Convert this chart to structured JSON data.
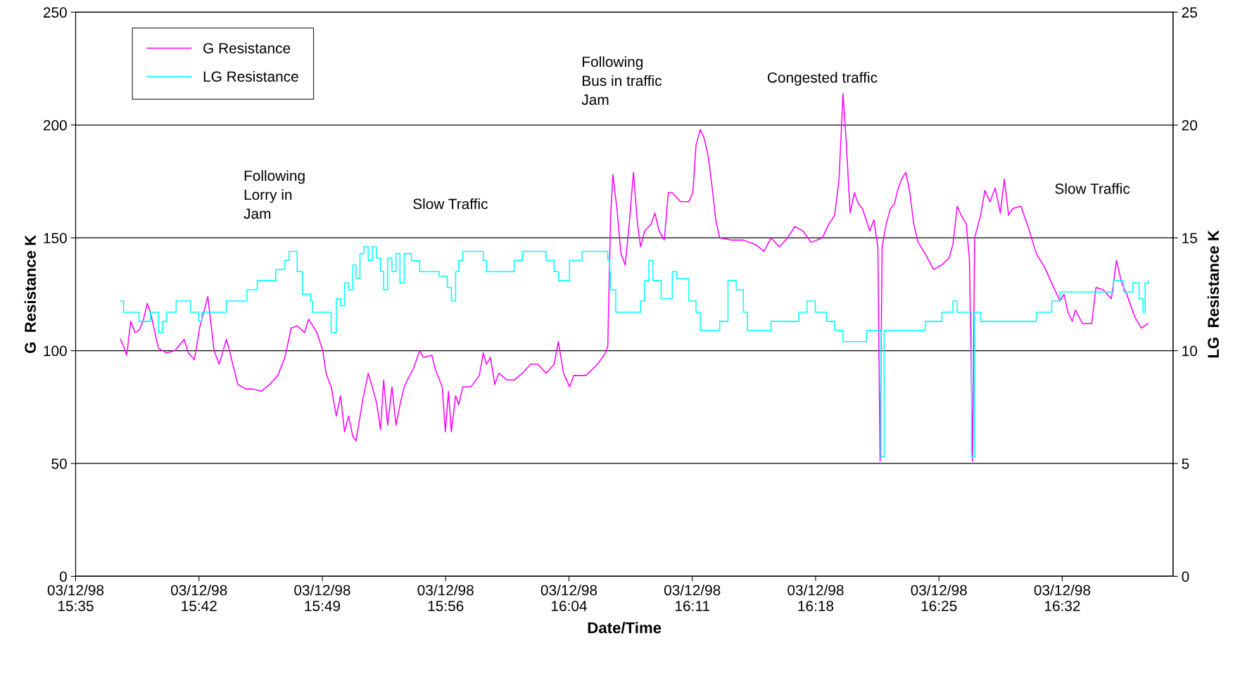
{
  "chart_data": {
    "type": "line",
    "xlabel": "Date/Time",
    "ylabel": "G  Resistance K",
    "y2label": "LG  Resistance K",
    "xlim": [
      "1998-12-03T15:35:00",
      "1998-12-03T16:39:04"
    ],
    "xticks": [
      {
        "value": "1998-12-03T15:35:00",
        "label": "03/12/98\n15:35"
      },
      {
        "value": "1998-12-03T15:42:12",
        "label": "03/12/98\n15:42"
      },
      {
        "value": "1998-12-03T15:49:24",
        "label": "03/12/98\n15:49"
      },
      {
        "value": "1998-12-03T15:56:36",
        "label": "03/12/98\n15:56"
      },
      {
        "value": "1998-12-03T16:03:48",
        "label": "03/12/98\n16:04"
      },
      {
        "value": "1998-12-03T16:11:00",
        "label": "03/12/98\n16:11"
      },
      {
        "value": "1998-12-03T16:18:12",
        "label": "03/12/98\n16:18"
      },
      {
        "value": "1998-12-03T16:25:24",
        "label": "03/12/98\n16:25"
      },
      {
        "value": "1998-12-03T16:32:36",
        "label": "03/12/98\n16:32"
      }
    ],
    "ylim": [
      0,
      250
    ],
    "yticks": [
      0,
      50,
      100,
      150,
      200,
      250
    ],
    "y2lim": [
      0,
      25
    ],
    "y2ticks": [
      0,
      5,
      10,
      15,
      20,
      25
    ],
    "grid": "y",
    "legend": "top left",
    "marker": "none",
    "line_style": "solid",
    "series": [
      {
        "name": "G Resistance",
        "color": "#ff00ff",
        "x": [
          "1998-12-03T15:37:37",
          "1998-12-03T15:37:48",
          "1998-12-03T15:37:59",
          "1998-12-03T15:38:13",
          "1998-12-03T15:38:28",
          "1998-12-03T15:38:42",
          "1998-12-03T15:38:56",
          "1998-12-03T15:39:11",
          "1998-12-03T15:39:22",
          "1998-12-03T15:39:36",
          "1998-12-03T15:39:50",
          "1998-12-03T15:40:19",
          "1998-12-03T15:40:48",
          "1998-12-03T15:41:20",
          "1998-12-03T15:41:35",
          "1998-12-03T15:41:56",
          "1998-12-03T15:42:14",
          "1998-12-03T15:42:43",
          "1998-12-03T15:43:05",
          "1998-12-03T15:43:23",
          "1998-12-03T15:43:48",
          "1998-12-03T15:43:59",
          "1998-12-03T15:44:28",
          "1998-12-03T15:44:56",
          "1998-12-03T15:45:22",
          "1998-12-03T15:45:50",
          "1998-12-03T15:46:19",
          "1998-12-03T15:46:48",
          "1998-12-03T15:47:13",
          "1998-12-03T15:47:35",
          "1998-12-03T15:47:56",
          "1998-12-03T15:48:22",
          "1998-12-03T15:48:36",
          "1998-12-03T15:49:05",
          "1998-12-03T15:49:26",
          "1998-12-03T15:49:37",
          "1998-12-03T15:49:55",
          "1998-12-03T15:50:13",
          "1998-12-03T15:50:28",
          "1998-12-03T15:50:42",
          "1998-12-03T15:50:56",
          "1998-12-03T15:51:11",
          "1998-12-03T15:51:22",
          "1998-12-03T15:51:47",
          "1998-12-03T15:52:05",
          "1998-12-03T15:52:19",
          "1998-12-03T15:52:34",
          "1998-12-03T15:52:48",
          "1998-12-03T15:52:59",
          "1998-12-03T15:53:13",
          "1998-12-03T15:53:28",
          "1998-12-03T15:53:42",
          "1998-12-03T15:53:56",
          "1998-12-03T15:54:11",
          "1998-12-03T15:54:22",
          "1998-12-03T15:54:43",
          "1998-12-03T15:55:05",
          "1998-12-03T15:55:19",
          "1998-12-03T15:55:48",
          "1998-12-03T15:55:59",
          "1998-12-03T15:56:24",
          "1998-12-03T15:56:35",
          "1998-12-03T15:56:46",
          "1998-12-03T15:56:56",
          "1998-12-03T15:57:11",
          "1998-12-03T15:57:22",
          "1998-12-03T15:57:36",
          "1998-12-03T15:58:05",
          "1998-12-03T15:58:34",
          "1998-12-03T15:58:48",
          "1998-12-03T15:58:59",
          "1998-12-03T15:59:13",
          "1998-12-03T15:59:28",
          "1998-12-03T15:59:42",
          "1998-12-03T16:00:11",
          "1998-12-03T16:00:36",
          "1998-12-03T16:01:05",
          "1998-12-03T16:01:34",
          "1998-12-03T16:01:59",
          "1998-12-03T16:02:28",
          "1998-12-03T16:02:56",
          "1998-12-03T16:03:11",
          "1998-12-03T16:03:29",
          "1998-12-03T16:03:50",
          "1998-12-03T16:04:05",
          "1998-12-03T16:04:48",
          "1998-12-03T16:05:28",
          "1998-12-03T16:05:56",
          "1998-12-03T16:06:04",
          "1998-12-03T16:06:14",
          "1998-12-03T16:06:22",
          "1998-12-03T16:06:36",
          "1998-12-03T16:06:50",
          "1998-12-03T16:07:05",
          "1998-12-03T16:07:19",
          "1998-12-03T16:07:34",
          "1998-12-03T16:07:48",
          "1998-12-03T16:07:59",
          "1998-12-03T16:08:13",
          "1998-12-03T16:08:35",
          "1998-12-03T16:08:49",
          "1998-12-03T16:09:04",
          "1998-12-03T16:09:22",
          "1998-12-03T16:09:36",
          "1998-12-03T16:09:50",
          "1998-12-03T16:10:19",
          "1998-12-03T16:10:48",
          "1998-12-03T16:11:02",
          "1998-12-03T16:11:13",
          "1998-12-03T16:11:28",
          "1998-12-03T16:11:42",
          "1998-12-03T16:11:56",
          "1998-12-03T16:12:11",
          "1998-12-03T16:12:22",
          "1998-12-03T16:12:36",
          "1998-12-03T16:13:19",
          "1998-12-03T16:13:59",
          "1998-12-03T16:14:42",
          "1998-12-03T16:15:11",
          "1998-12-03T16:15:36",
          "1998-12-03T16:16:05",
          "1998-12-03T16:16:34",
          "1998-12-03T16:16:59",
          "1998-12-03T16:17:28",
          "1998-12-03T16:17:56",
          "1998-12-03T16:18:36",
          "1998-12-03T16:18:58",
          "1998-12-03T16:19:19",
          "1998-12-03T16:19:34",
          "1998-12-03T16:19:48",
          "1998-12-03T16:19:59",
          "1998-12-03T16:20:13",
          "1998-12-03T16:20:28",
          "1998-12-03T16:20:42",
          "1998-12-03T16:20:56",
          "1998-12-03T16:21:22",
          "1998-12-03T16:21:36",
          "1998-12-03T16:21:50",
          "1998-12-03T16:21:58",
          "1998-12-03T16:22:05",
          "1998-12-03T16:22:19",
          "1998-12-03T16:22:34",
          "1998-12-03T16:22:48",
          "1998-12-03T16:22:59",
          "1998-12-03T16:23:13",
          "1998-12-03T16:23:28",
          "1998-12-03T16:23:42",
          "1998-12-03T16:23:56",
          "1998-12-03T16:24:11",
          "1998-12-03T16:24:36",
          "1998-12-03T16:25:05",
          "1998-12-03T16:25:34",
          "1998-12-03T16:25:59",
          "1998-12-03T16:26:13",
          "1998-12-03T16:26:28",
          "1998-12-03T16:26:42",
          "1998-12-03T16:27:00",
          "1998-12-03T16:27:11",
          "1998-12-03T16:27:22",
          "1998-12-03T16:27:29",
          "1998-12-03T16:27:50",
          "1998-12-03T16:28:05",
          "1998-12-03T16:28:23",
          "1998-12-03T16:28:41",
          "1998-12-03T16:28:59",
          "1998-12-03T16:29:13",
          "1998-12-03T16:29:28",
          "1998-12-03T16:29:42",
          "1998-12-03T16:30:11",
          "1998-12-03T16:30:36",
          "1998-12-03T16:31:05",
          "1998-12-03T16:31:34",
          "1998-12-03T16:31:59",
          "1998-12-03T16:32:28",
          "1998-12-03T16:32:42",
          "1998-12-03T16:32:56",
          "1998-12-03T16:33:11",
          "1998-12-03T16:33:22",
          "1998-12-03T16:33:47",
          "1998-12-03T16:34:19",
          "1998-12-03T16:34:34",
          "1998-12-03T16:34:59",
          "1998-12-03T16:35:28",
          "1998-12-03T16:35:46",
          "1998-12-03T16:36:04",
          "1998-12-03T16:36:22",
          "1998-12-03T16:36:50",
          "1998-12-03T16:37:12",
          "1998-12-03T16:37:37"
        ],
        "values": [
          105,
          102,
          98,
          113,
          108,
          109,
          113,
          121,
          117,
          109,
          101,
          99,
          100,
          105,
          99,
          96,
          110,
          124,
          100,
          94,
          105,
          100,
          85,
          83,
          83,
          82,
          85,
          89,
          97,
          110,
          111,
          108,
          114,
          108,
          100,
          90,
          84,
          71,
          80,
          64,
          71,
          62,
          60,
          79,
          90,
          84,
          77,
          65,
          87,
          67,
          84,
          67,
          76,
          84,
          87,
          92,
          100,
          97,
          98,
          92,
          84,
          64,
          82,
          64,
          80,
          76,
          84,
          84,
          89,
          99,
          94,
          97,
          85,
          90,
          87,
          87,
          90,
          94,
          94,
          90,
          94,
          104,
          90,
          84,
          89,
          89,
          94,
          99,
          102,
          160,
          178,
          163,
          143,
          138,
          156,
          179,
          156,
          146,
          153,
          156,
          161,
          153,
          149,
          170,
          170,
          166,
          166,
          170,
          191,
          198,
          194,
          186,
          171,
          158,
          150,
          149,
          149,
          147,
          144,
          150,
          146,
          150,
          155,
          153,
          148,
          150,
          156,
          160,
          176,
          214,
          193,
          161,
          170,
          165,
          163,
          153,
          158,
          146,
          51,
          146,
          156,
          163,
          165,
          171,
          176,
          179,
          170,
          156,
          148,
          143,
          136,
          138,
          141,
          147,
          164,
          160,
          156,
          140,
          51,
          150,
          160,
          171,
          166,
          172,
          161,
          176,
          160,
          163,
          164,
          155,
          143,
          137,
          130,
          122,
          125,
          117,
          113,
          118,
          112,
          112,
          128,
          127,
          123,
          140,
          130,
          125,
          115,
          110,
          112
        ]
      },
      {
        "name": "LG Resistance",
        "color": "#00ffff",
        "axis": "y2",
        "type": "step",
        "x": [
          "1998-12-03T15:37:37",
          "1998-12-03T15:37:48",
          "1998-12-03T15:38:28",
          "1998-12-03T15:38:42",
          "1998-12-03T15:39:11",
          "1998-12-03T15:39:22",
          "1998-12-03T15:39:50",
          "1998-12-03T15:40:05",
          "1998-12-03T15:40:19",
          "1998-12-03T15:40:52",
          "1998-12-03T15:41:35",
          "1998-12-03T15:41:42",
          "1998-12-03T15:42:11",
          "1998-12-03T15:42:22",
          "1998-12-03T15:43:05",
          "1998-12-03T15:43:48",
          "1998-12-03T15:44:28",
          "1998-12-03T15:45:00",
          "1998-12-03T15:45:36",
          "1998-12-03T15:46:41",
          "1998-12-03T15:47:13",
          "1998-12-03T15:47:28",
          "1998-12-03T15:47:42",
          "1998-12-03T15:47:56",
          "1998-12-03T15:48:14",
          "1998-12-03T15:48:43",
          "1998-12-03T15:48:50",
          "1998-12-03T15:49:19",
          "1998-12-03T15:49:44",
          "1998-12-03T15:49:55",
          "1998-12-03T15:50:13",
          "1998-12-03T15:50:28",
          "1998-12-03T15:50:42",
          "1998-12-03T15:50:56",
          "1998-12-03T15:51:11",
          "1998-12-03T15:51:22",
          "1998-12-03T15:51:36",
          "1998-12-03T15:51:50",
          "1998-12-03T15:52:05",
          "1998-12-03T15:52:19",
          "1998-12-03T15:52:34",
          "1998-12-03T15:52:48",
          "1998-12-03T15:52:59",
          "1998-12-03T15:53:13",
          "1998-12-03T15:53:28",
          "1998-12-03T15:53:42",
          "1998-12-03T15:53:56",
          "1998-12-03T15:54:11",
          "1998-12-03T15:54:36",
          "1998-12-03T15:55:05",
          "1998-12-03T15:55:48",
          "1998-12-03T15:56:13",
          "1998-12-03T15:56:42",
          "1998-12-03T15:56:56",
          "1998-12-03T15:57:11",
          "1998-12-03T15:57:22",
          "1998-12-03T15:57:36",
          "1998-12-03T15:58:19",
          "1998-12-03T15:58:48",
          "1998-12-03T15:58:59",
          "1998-12-03T15:59:28",
          "1998-12-03T16:00:11",
          "1998-12-03T16:00:36",
          "1998-12-03T16:01:05",
          "1998-12-03T16:01:59",
          "1998-12-03T16:02:28",
          "1998-12-03T16:02:56",
          "1998-12-03T16:03:11",
          "1998-12-03T16:03:29",
          "1998-12-03T16:03:50",
          "1998-12-03T16:04:34",
          "1998-12-03T16:05:42",
          "1998-12-03T16:06:04",
          "1998-12-03T16:06:11",
          "1998-12-03T16:06:14",
          "1998-12-03T16:06:32",
          "1998-12-03T16:07:34",
          "1998-12-03T16:07:59",
          "1998-12-03T16:08:13",
          "1998-12-03T16:08:28",
          "1998-12-03T16:08:42",
          "1998-12-03T16:09:11",
          "1998-12-03T16:09:50",
          "1998-12-03T16:10:05",
          "1998-12-03T16:10:48",
          "1998-12-03T16:11:13",
          "1998-12-03T16:11:28",
          "1998-12-03T16:12:11",
          "1998-12-03T16:12:36",
          "1998-12-03T16:13:05",
          "1998-12-03T16:13:34",
          "1998-12-03T16:13:59",
          "1998-12-03T16:14:13",
          "1998-12-03T16:15:22",
          "1998-12-03T16:15:36",
          "1998-12-03T16:16:05",
          "1998-12-03T16:16:44",
          "1998-12-03T16:17:13",
          "1998-12-03T16:17:42",
          "1998-12-03T16:18:11",
          "1998-12-03T16:18:36",
          "1998-12-03T16:18:50",
          "1998-12-03T16:19:19",
          "1998-12-03T16:19:48",
          "1998-12-03T16:20:28",
          "1998-12-03T16:21:11",
          "1998-12-03T16:21:36",
          "1998-12-03T16:21:50",
          "1998-12-03T16:22:01",
          "1998-12-03T16:22:12",
          "1998-12-03T16:23:42",
          "1998-12-03T16:24:11",
          "1998-12-03T16:24:36",
          "1998-12-03T16:25:34",
          "1998-12-03T16:26:13",
          "1998-12-03T16:26:28",
          "1998-12-03T16:27:00",
          "1998-12-03T16:27:18",
          "1998-12-03T16:27:29",
          "1998-12-03T16:27:50",
          "1998-12-03T16:29:13",
          "1998-12-03T16:30:11",
          "1998-12-03T16:31:05",
          "1998-12-03T16:31:59",
          "1998-12-03T16:32:28",
          "1998-12-03T16:34:19",
          "1998-12-03T16:35:13",
          "1998-12-03T16:35:35",
          "1998-12-03T16:36:11",
          "1998-12-03T16:36:43",
          "1998-12-03T16:37:05",
          "1998-12-03T16:37:19",
          "1998-12-03T16:37:26",
          "1998-12-03T16:37:37"
        ],
        "values": [
          12.2,
          11.7,
          11.7,
          11.3,
          11.3,
          11.7,
          10.8,
          11.3,
          11.7,
          12.2,
          12.2,
          11.7,
          11.3,
          11.7,
          11.7,
          12.2,
          12.2,
          12.7,
          13.1,
          13.6,
          14.0,
          14.4,
          14.4,
          13.5,
          12.5,
          12.2,
          11.7,
          11.7,
          11.7,
          10.8,
          12.3,
          12.0,
          13.0,
          12.7,
          13.8,
          13.2,
          14.3,
          14.6,
          14.0,
          14.6,
          14.1,
          13.5,
          12.7,
          14.1,
          13.5,
          14.3,
          13.0,
          14.3,
          14.0,
          13.5,
          13.5,
          13.3,
          12.8,
          12.2,
          13.5,
          14.0,
          14.4,
          14.4,
          14.0,
          13.5,
          13.5,
          13.5,
          14.0,
          14.4,
          14.4,
          14.0,
          13.5,
          13.1,
          13.1,
          14.0,
          14.4,
          14.4,
          14.0,
          13.5,
          12.7,
          11.7,
          11.7,
          12.2,
          13.1,
          14.0,
          13.1,
          12.3,
          13.5,
          13.2,
          12.2,
          11.7,
          10.9,
          10.9,
          11.3,
          13.1,
          12.7,
          11.7,
          10.9,
          10.9,
          11.3,
          11.3,
          11.3,
          11.7,
          12.2,
          11.7,
          11.7,
          11.3,
          10.9,
          10.4,
          10.4,
          10.9,
          10.9,
          10.9,
          5.3,
          10.9,
          10.9,
          10.9,
          11.3,
          11.7,
          12.2,
          11.7,
          11.7,
          5.3,
          11.7,
          11.3,
          11.3,
          11.3,
          11.7,
          12.2,
          12.6,
          12.6,
          12.6,
          13.1,
          12.6,
          13.0,
          12.3,
          11.7,
          13.0,
          13.1
        ]
      }
    ],
    "annotations": [
      "Following\nLorry in\nJam",
      "Slow Traffic",
      "Following\nBus in traffic\nJam",
      "Congested traffic",
      "Slow Traffic"
    ]
  }
}
